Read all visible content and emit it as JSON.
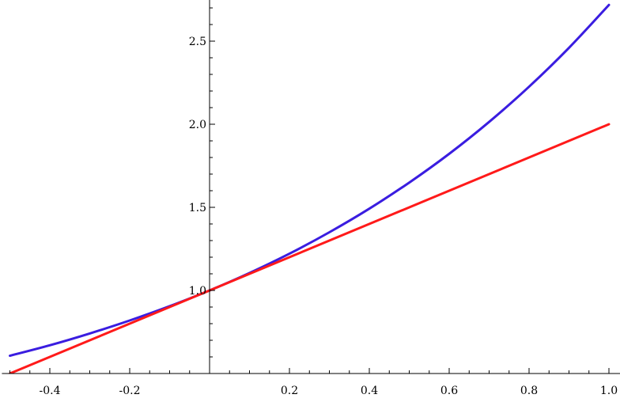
{
  "chart_data": {
    "type": "line",
    "title": "",
    "xlabel": "",
    "ylabel": "",
    "xlim": [
      -0.52,
      1.0
    ],
    "ylim": [
      0.55,
      2.75
    ],
    "grid": false,
    "x_ticks": [
      {
        "value": -0.4,
        "label": "-0.4"
      },
      {
        "value": -0.2,
        "label": "-0.2"
      },
      {
        "value": 0.2,
        "label": "0.2"
      },
      {
        "value": 0.4,
        "label": "0.4"
      },
      {
        "value": 0.6,
        "label": "0.6"
      },
      {
        "value": 0.8,
        "label": "0.8"
      },
      {
        "value": 1.0,
        "label": "1.0"
      }
    ],
    "y_ticks": [
      {
        "value": 1.0,
        "label": "1.0"
      },
      {
        "value": 1.5,
        "label": "1.5"
      },
      {
        "value": 2.0,
        "label": "2.0"
      },
      {
        "value": 2.5,
        "label": "2.5"
      }
    ],
    "series": [
      {
        "color": "#3a1de0",
        "x": [
          -0.5,
          -0.4,
          -0.3,
          -0.2,
          -0.1,
          0.0,
          0.1,
          0.2,
          0.3,
          0.4,
          0.5,
          0.6,
          0.7,
          0.8,
          0.9,
          1.0
        ],
        "y": [
          0.607,
          0.67,
          0.741,
          0.819,
          0.905,
          1.0,
          1.105,
          1.221,
          1.35,
          1.492,
          1.649,
          1.822,
          2.014,
          2.226,
          2.46,
          2.718
        ]
      },
      {
        "color": "#ff1a1a",
        "x": [
          -0.5,
          1.0
        ],
        "y": [
          0.5,
          2.0
        ]
      }
    ]
  }
}
